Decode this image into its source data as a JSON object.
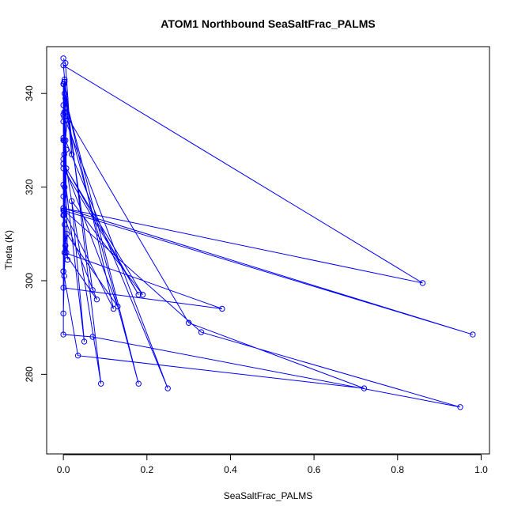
{
  "chart_data": {
    "type": "line",
    "title": "ATOM1 Northbound SeaSaltFrac_PALMS",
    "xlabel": "SeaSaltFrac_PALMS",
    "ylabel": "Theta (K)",
    "xlim": [
      -0.04,
      1.02
    ],
    "ylim": [
      263,
      350
    ],
    "xticks": [
      0.0,
      0.2,
      0.4,
      0.6,
      0.8,
      1.0
    ],
    "xtick_labels": [
      "0.0",
      "0.2",
      "0.4",
      "0.6",
      "0.8",
      "1.0"
    ],
    "yticks": [
      280,
      300,
      320,
      340
    ],
    "ytick_labels": [
      "280",
      "300",
      "320",
      "340"
    ],
    "grid": false,
    "series_color": "#0000ff",
    "markers": "open-circle",
    "series": [
      {
        "x": [
          0.0,
          0.005,
          0.02,
          0.0,
          0.86,
          0.0,
          0.98,
          0.0,
          0.12,
          0.003,
          0.07,
          0.005,
          0.18,
          0.0,
          0.002,
          0.0,
          0.007,
          0.0,
          0.08,
          0.003,
          0.001,
          0.0,
          0.01,
          0.002,
          0.0,
          0.38,
          0.003,
          0.005,
          0.002,
          0.0,
          0.002,
          0.33,
          0.95,
          0.07,
          0.0,
          0.0,
          0.003,
          0.007,
          0.18,
          0.0,
          0.005,
          0.003,
          0.09,
          0.002,
          0.01,
          0.3,
          0.72,
          0.035,
          0.0,
          0.005,
          0.25,
          0.002,
          0.0,
          0.008,
          0.13,
          0.0,
          0.05,
          0.02,
          0.19,
          0.0,
          0.007,
          0.003,
          0.002,
          0.002,
          0.003,
          0.0,
          0.0,
          0.0,
          0.0,
          0.0,
          0.0,
          0.0
        ],
        "y": [
          347.5,
          346.5,
          327.0,
          346.0,
          299.5,
          315.5,
          288.5,
          315.0,
          294.0,
          340.0,
          298.0,
          339.0,
          278.0,
          337.5,
          330.0,
          318.0,
          306.0,
          314.0,
          296.0,
          306.0,
          342.0,
          314.0,
          304.5,
          342.5,
          298.5,
          294.0,
          306.0,
          307.5,
          301.0,
          293.0,
          315.0,
          289.0,
          273.0,
          288.0,
          288.5,
          342.0,
          342.5,
          324.0,
          297.0,
          324.0,
          336.0,
          343.0,
          278.0,
          327.0,
          335.0,
          291.0,
          277.0,
          284.0,
          302.0,
          330.0,
          277.0,
          335.0,
          302.0,
          310.0,
          294.5,
          325.0,
          287.0,
          317.0,
          297.0,
          325.0,
          328.0,
          312.0,
          336.0,
          314.0,
          320.0,
          335.5,
          334.0,
          330.5,
          326.0,
          320.5,
          330.0,
          315.5
        ]
      }
    ]
  }
}
